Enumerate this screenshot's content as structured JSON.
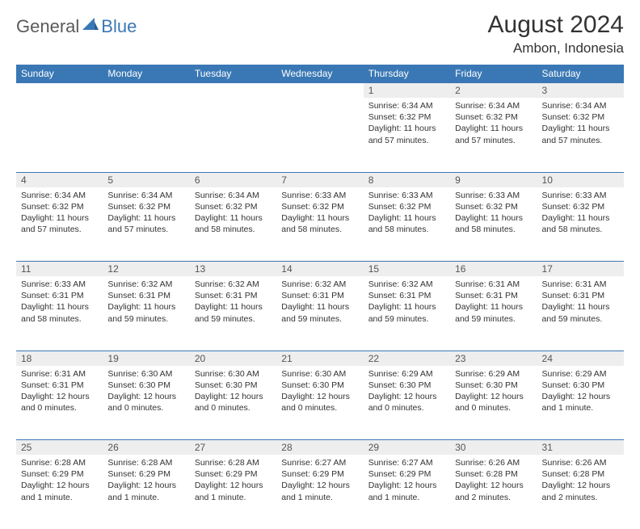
{
  "logo": {
    "part1": "General",
    "part2": "Blue"
  },
  "title": "August 2024",
  "location": "Ambon, Indonesia",
  "colors": {
    "header_bg": "#3a78b5",
    "header_text": "#ffffff",
    "daynum_bg": "#eeeeee",
    "border": "#3a78b5",
    "body_text": "#333333",
    "logo_gray": "#5a5a5a",
    "logo_blue": "#3a78b5"
  },
  "day_headers": [
    "Sunday",
    "Monday",
    "Tuesday",
    "Wednesday",
    "Thursday",
    "Friday",
    "Saturday"
  ],
  "weeks": [
    [
      null,
      null,
      null,
      null,
      {
        "n": "1",
        "sr": "Sunrise: 6:34 AM",
        "ss": "Sunset: 6:32 PM",
        "d1": "Daylight: 11 hours",
        "d2": "and 57 minutes."
      },
      {
        "n": "2",
        "sr": "Sunrise: 6:34 AM",
        "ss": "Sunset: 6:32 PM",
        "d1": "Daylight: 11 hours",
        "d2": "and 57 minutes."
      },
      {
        "n": "3",
        "sr": "Sunrise: 6:34 AM",
        "ss": "Sunset: 6:32 PM",
        "d1": "Daylight: 11 hours",
        "d2": "and 57 minutes."
      }
    ],
    [
      {
        "n": "4",
        "sr": "Sunrise: 6:34 AM",
        "ss": "Sunset: 6:32 PM",
        "d1": "Daylight: 11 hours",
        "d2": "and 57 minutes."
      },
      {
        "n": "5",
        "sr": "Sunrise: 6:34 AM",
        "ss": "Sunset: 6:32 PM",
        "d1": "Daylight: 11 hours",
        "d2": "and 57 minutes."
      },
      {
        "n": "6",
        "sr": "Sunrise: 6:34 AM",
        "ss": "Sunset: 6:32 PM",
        "d1": "Daylight: 11 hours",
        "d2": "and 58 minutes."
      },
      {
        "n": "7",
        "sr": "Sunrise: 6:33 AM",
        "ss": "Sunset: 6:32 PM",
        "d1": "Daylight: 11 hours",
        "d2": "and 58 minutes."
      },
      {
        "n": "8",
        "sr": "Sunrise: 6:33 AM",
        "ss": "Sunset: 6:32 PM",
        "d1": "Daylight: 11 hours",
        "d2": "and 58 minutes."
      },
      {
        "n": "9",
        "sr": "Sunrise: 6:33 AM",
        "ss": "Sunset: 6:32 PM",
        "d1": "Daylight: 11 hours",
        "d2": "and 58 minutes."
      },
      {
        "n": "10",
        "sr": "Sunrise: 6:33 AM",
        "ss": "Sunset: 6:32 PM",
        "d1": "Daylight: 11 hours",
        "d2": "and 58 minutes."
      }
    ],
    [
      {
        "n": "11",
        "sr": "Sunrise: 6:33 AM",
        "ss": "Sunset: 6:31 PM",
        "d1": "Daylight: 11 hours",
        "d2": "and 58 minutes."
      },
      {
        "n": "12",
        "sr": "Sunrise: 6:32 AM",
        "ss": "Sunset: 6:31 PM",
        "d1": "Daylight: 11 hours",
        "d2": "and 59 minutes."
      },
      {
        "n": "13",
        "sr": "Sunrise: 6:32 AM",
        "ss": "Sunset: 6:31 PM",
        "d1": "Daylight: 11 hours",
        "d2": "and 59 minutes."
      },
      {
        "n": "14",
        "sr": "Sunrise: 6:32 AM",
        "ss": "Sunset: 6:31 PM",
        "d1": "Daylight: 11 hours",
        "d2": "and 59 minutes."
      },
      {
        "n": "15",
        "sr": "Sunrise: 6:32 AM",
        "ss": "Sunset: 6:31 PM",
        "d1": "Daylight: 11 hours",
        "d2": "and 59 minutes."
      },
      {
        "n": "16",
        "sr": "Sunrise: 6:31 AM",
        "ss": "Sunset: 6:31 PM",
        "d1": "Daylight: 11 hours",
        "d2": "and 59 minutes."
      },
      {
        "n": "17",
        "sr": "Sunrise: 6:31 AM",
        "ss": "Sunset: 6:31 PM",
        "d1": "Daylight: 11 hours",
        "d2": "and 59 minutes."
      }
    ],
    [
      {
        "n": "18",
        "sr": "Sunrise: 6:31 AM",
        "ss": "Sunset: 6:31 PM",
        "d1": "Daylight: 12 hours",
        "d2": "and 0 minutes."
      },
      {
        "n": "19",
        "sr": "Sunrise: 6:30 AM",
        "ss": "Sunset: 6:30 PM",
        "d1": "Daylight: 12 hours",
        "d2": "and 0 minutes."
      },
      {
        "n": "20",
        "sr": "Sunrise: 6:30 AM",
        "ss": "Sunset: 6:30 PM",
        "d1": "Daylight: 12 hours",
        "d2": "and 0 minutes."
      },
      {
        "n": "21",
        "sr": "Sunrise: 6:30 AM",
        "ss": "Sunset: 6:30 PM",
        "d1": "Daylight: 12 hours",
        "d2": "and 0 minutes."
      },
      {
        "n": "22",
        "sr": "Sunrise: 6:29 AM",
        "ss": "Sunset: 6:30 PM",
        "d1": "Daylight: 12 hours",
        "d2": "and 0 minutes."
      },
      {
        "n": "23",
        "sr": "Sunrise: 6:29 AM",
        "ss": "Sunset: 6:30 PM",
        "d1": "Daylight: 12 hours",
        "d2": "and 0 minutes."
      },
      {
        "n": "24",
        "sr": "Sunrise: 6:29 AM",
        "ss": "Sunset: 6:30 PM",
        "d1": "Daylight: 12 hours",
        "d2": "and 1 minute."
      }
    ],
    [
      {
        "n": "25",
        "sr": "Sunrise: 6:28 AM",
        "ss": "Sunset: 6:29 PM",
        "d1": "Daylight: 12 hours",
        "d2": "and 1 minute."
      },
      {
        "n": "26",
        "sr": "Sunrise: 6:28 AM",
        "ss": "Sunset: 6:29 PM",
        "d1": "Daylight: 12 hours",
        "d2": "and 1 minute."
      },
      {
        "n": "27",
        "sr": "Sunrise: 6:28 AM",
        "ss": "Sunset: 6:29 PM",
        "d1": "Daylight: 12 hours",
        "d2": "and 1 minute."
      },
      {
        "n": "28",
        "sr": "Sunrise: 6:27 AM",
        "ss": "Sunset: 6:29 PM",
        "d1": "Daylight: 12 hours",
        "d2": "and 1 minute."
      },
      {
        "n": "29",
        "sr": "Sunrise: 6:27 AM",
        "ss": "Sunset: 6:29 PM",
        "d1": "Daylight: 12 hours",
        "d2": "and 1 minute."
      },
      {
        "n": "30",
        "sr": "Sunrise: 6:26 AM",
        "ss": "Sunset: 6:28 PM",
        "d1": "Daylight: 12 hours",
        "d2": "and 2 minutes."
      },
      {
        "n": "31",
        "sr": "Sunrise: 6:26 AM",
        "ss": "Sunset: 6:28 PM",
        "d1": "Daylight: 12 hours",
        "d2": "and 2 minutes."
      }
    ]
  ]
}
